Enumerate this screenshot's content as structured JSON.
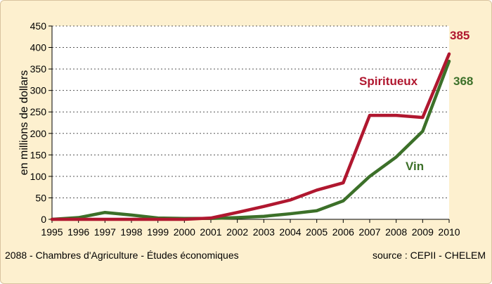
{
  "chart_data": {
    "type": "line",
    "title": "",
    "ylabel": "en millions de dollars",
    "xlabel": "",
    "x": [
      1995,
      1996,
      1997,
      1998,
      1999,
      2000,
      2001,
      2002,
      2003,
      2004,
      2005,
      2006,
      2007,
      2008,
      2009,
      2010
    ],
    "ylim": [
      0,
      450
    ],
    "yticks": [
      0,
      50,
      100,
      150,
      200,
      250,
      300,
      350,
      400,
      450
    ],
    "grid": true,
    "series": [
      {
        "name": "Spiritueux",
        "color": "#b0172f",
        "values": [
          0,
          0,
          0,
          0,
          0,
          0,
          3,
          16,
          30,
          45,
          68,
          85,
          242,
          242,
          237,
          385
        ],
        "end_label": "385"
      },
      {
        "name": "Vin",
        "color": "#3c7029",
        "values": [
          0,
          4,
          16,
          10,
          3,
          2,
          2,
          4,
          7,
          13,
          20,
          43,
          100,
          145,
          205,
          368
        ],
        "end_label": "368"
      }
    ]
  },
  "footer": {
    "left": "2088 - Chambres d'Agriculture - Études économiques",
    "right": "source : CEPII - CHELEM"
  }
}
